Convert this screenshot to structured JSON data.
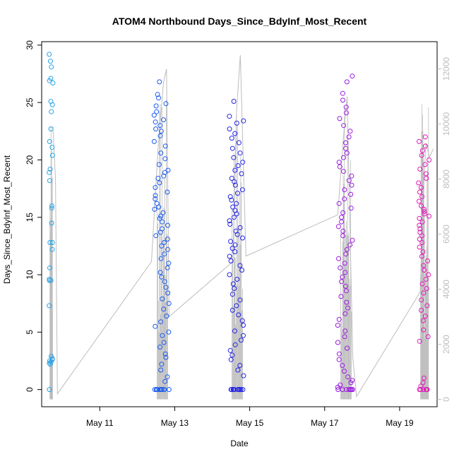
{
  "chart_data": {
    "type": "scatter",
    "title": "ATOM4 Northbound Days_Since_BdyInf_Most_Recent",
    "xlabel": "Date",
    "ylabel": "Days_Since_BdyInf_Most_Recent",
    "x_ticks": [
      "May 11",
      "May 13",
      "May 15",
      "May 17",
      "May 19"
    ],
    "x_tick_values": [
      11,
      13,
      15,
      17,
      19
    ],
    "xlim": [
      9.45,
      20.0
    ],
    "ylim": [
      -1.5,
      30.3
    ],
    "y_ticks": [
      0,
      5,
      10,
      15,
      20,
      25,
      30
    ],
    "y2_ticks": [
      0,
      2000,
      4000,
      6000,
      8000,
      10000,
      12000
    ],
    "y2lim": [
      -270,
      12990
    ],
    "grid": false,
    "colors": {
      "may9": "#29a3e6",
      "may12": "#1a5cf0",
      "may14": "#2424e6",
      "may17": "#9a1ae0",
      "may19": "#e01ab8",
      "count_line": "#bdbdbd",
      "axis": "#000000"
    },
    "series": [
      {
        "x_center": 9.7,
        "x_spread": 0.05,
        "color_key": "may9",
        "values": [
          29.2,
          28.6,
          28.1,
          27.1,
          26.9,
          26.7,
          25.1,
          24.8,
          24.2,
          22.7,
          21.6,
          21.1,
          20.4,
          19.2,
          18.9,
          18.2,
          16.0,
          15.8,
          14.5,
          12.8,
          12.8,
          12.2,
          10.6,
          9.6,
          9.5,
          7.3,
          2.9,
          2.7,
          2.6,
          2.5,
          2.4,
          2.3,
          2.2,
          9.5,
          0.0
        ]
      },
      {
        "x_center": 12.65,
        "x_spread": 0.2,
        "color_key": "may12",
        "values": [
          26.8,
          25.7,
          25.4,
          24.9,
          24.7,
          24.2,
          23.9,
          23.5,
          23.3,
          23.0,
          22.7,
          22.5,
          22.1,
          21.6,
          21.2,
          20.6,
          20.1,
          19.6,
          19.1,
          18.9,
          18.6,
          18.4,
          18.0,
          17.6,
          17.2,
          16.9,
          16.6,
          16.2,
          15.9,
          15.7,
          15.4,
          15.1,
          14.9,
          14.6,
          14.3,
          14.0,
          13.7,
          13.4,
          13.1,
          12.8,
          12.5,
          12.2,
          11.8,
          11.4,
          11.0,
          10.6,
          10.2,
          9.8,
          9.4,
          8.9,
          8.4,
          7.9,
          7.5,
          7.0,
          6.4,
          5.9,
          5.5,
          5.0,
          4.7,
          4.1,
          3.7,
          3.1,
          2.8,
          2.2,
          1.7,
          1.1,
          0.7,
          0.0,
          0.0,
          0.0,
          0.0,
          0.0,
          0.0,
          0.0,
          0.0,
          0.0,
          0.0
        ]
      },
      {
        "x_center": 14.65,
        "x_spread": 0.2,
        "color_key": "may14",
        "values": [
          25.1,
          23.8,
          23.4,
          23.2,
          22.7,
          22.3,
          21.9,
          21.5,
          21.0,
          20.6,
          20.2,
          19.8,
          19.5,
          19.1,
          18.8,
          18.4,
          18.1,
          17.8,
          17.4,
          17.1,
          16.8,
          16.5,
          16.2,
          15.9,
          15.6,
          15.3,
          15.0,
          14.7,
          14.4,
          14.1,
          13.8,
          13.5,
          13.2,
          12.9,
          12.6,
          12.3,
          12.0,
          11.6,
          11.2,
          10.8,
          10.4,
          10.0,
          9.6,
          9.2,
          8.8,
          8.3,
          7.8,
          7.3,
          6.9,
          6.5,
          6.0,
          5.6,
          5.1,
          4.7,
          4.3,
          3.9,
          3.4,
          3.0,
          2.6,
          2.1,
          1.7,
          1.2,
          0.0,
          0.0,
          0.0,
          0.0,
          0.0,
          0.0,
          0.0,
          0.0,
          0.0,
          0.0,
          0.0,
          0.0
        ]
      },
      {
        "x_center": 17.55,
        "x_spread": 0.2,
        "color_key": "may17",
        "values": [
          27.3,
          26.8,
          25.8,
          25.2,
          24.6,
          24.1,
          23.6,
          23.0,
          22.5,
          22.0,
          21.5,
          21.0,
          20.6,
          20.2,
          19.8,
          19.4,
          19.0,
          18.6,
          18.2,
          17.8,
          17.4,
          17.0,
          16.6,
          16.2,
          15.8,
          15.4,
          15.0,
          14.6,
          14.2,
          13.8,
          13.4,
          13.0,
          12.6,
          12.2,
          11.8,
          11.4,
          11.0,
          10.6,
          10.2,
          9.8,
          9.4,
          9.0,
          8.6,
          8.1,
          7.6,
          7.1,
          6.6,
          6.1,
          5.6,
          5.1,
          4.6,
          4.1,
          3.6,
          3.1,
          2.6,
          2.1,
          1.6,
          1.1,
          0.8,
          0.6,
          0.4,
          0.2,
          0.0,
          0.0,
          0.0,
          0.0,
          0.0,
          0.0,
          0.0,
          0.0
        ]
      },
      {
        "x_center": 19.65,
        "x_spread": 0.15,
        "color_key": "may19",
        "values": [
          22.0,
          21.6,
          21.2,
          20.8,
          20.4,
          20.0,
          19.6,
          19.2,
          18.8,
          18.4,
          18.0,
          17.6,
          17.2,
          16.8,
          16.4,
          16.0,
          15.7,
          15.5,
          15.3,
          15.1,
          14.9,
          14.6,
          14.3,
          14.0,
          13.7,
          13.4,
          13.1,
          12.8,
          12.4,
          12.0,
          11.6,
          11.2,
          10.8,
          10.4,
          10.0,
          9.6,
          9.2,
          8.8,
          8.4,
          7.8,
          7.3,
          6.9,
          6.4,
          6.0,
          5.2,
          4.6,
          4.2,
          1.0,
          0.6,
          0.3,
          0.0,
          0.0,
          0.0,
          0.0,
          0.0,
          0.0
        ]
      }
    ],
    "count_line": {
      "x": [
        9.75,
        9.82,
        9.87,
        12.38,
        12.55,
        12.7,
        12.78,
        12.85,
        14.55,
        14.65,
        14.75,
        14.9,
        17.35,
        17.5,
        17.6,
        17.75,
        17.85,
        19.55,
        19.62,
        19.7,
        19.8,
        19.9
      ],
      "y": [
        9900,
        8000,
        200,
        5000,
        9000,
        11500,
        12000,
        3000,
        5000,
        10500,
        12500,
        5200,
        6700,
        9500,
        11000,
        1500,
        100,
        3900,
        7000,
        9300,
        8800,
        9100
      ]
    }
  }
}
